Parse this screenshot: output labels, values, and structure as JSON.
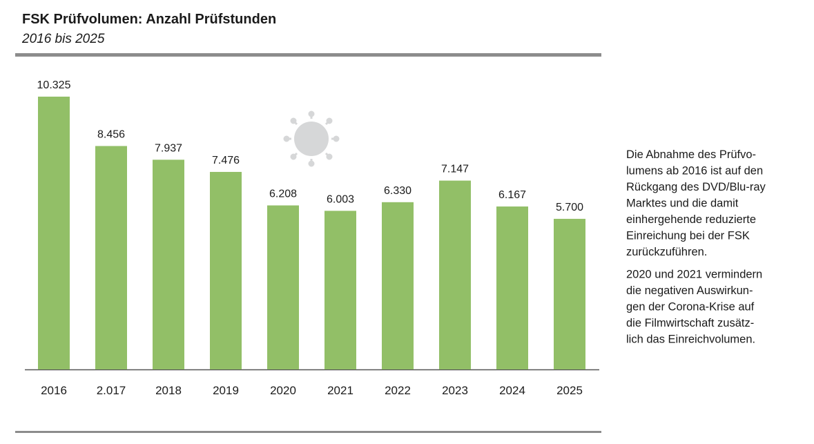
{
  "chart_data": {
    "type": "bar",
    "title": "FSK Prüfvolumen: Anzahl Prüfstunden",
    "subtitle": "2016 bis 2025",
    "categories": [
      "2016",
      "2.017",
      "2018",
      "2019",
      "2020",
      "2021",
      "2022",
      "2023",
      "2024",
      "2025"
    ],
    "values": [
      10325,
      8456,
      7937,
      7476,
      6208,
      6003,
      6330,
      7147,
      6167,
      5700
    ],
    "value_labels": [
      "10.325",
      "8.456",
      "7.937",
      "7.476",
      "6.208",
      "6.003",
      "6.330",
      "7.147",
      "6.167",
      "5.700"
    ],
    "color": "#92bf67",
    "ylim": [
      0,
      11500
    ],
    "annotations": [
      [
        "Die Abnahme des Prüfvo-",
        "lumens ab 2016 ist auf den",
        "Rückgang des DVD/Blu-ray",
        "Marktes und die damit",
        "einhergehende reduzierte",
        "Einreichung bei der FSK",
        "zurückzuführen."
      ],
      [
        "2020 und 2021 vermindern",
        "die negativen Auswirkun-",
        "gen der Corona-Krise auf",
        "die Filmwirtschaft zusätz-",
        "lich das Einreichvolumen."
      ]
    ]
  }
}
